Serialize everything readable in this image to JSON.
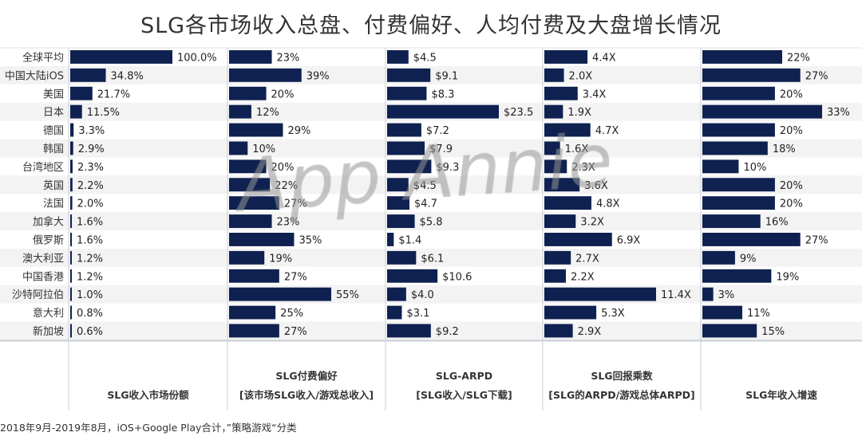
{
  "title": "SLG各市场收入总盘、付费偏好、人均付费及大盘增长情况",
  "footer": "2018年9月-2019年8月，iOS+Google Play合计，”策略游戏“分类",
  "watermark": "App Annie",
  "colors": {
    "bar": "#0f2150",
    "row_alt": "#f3f3f3",
    "divider": "#c9ced6"
  },
  "chart_data": {
    "type": "bar",
    "orientation": "horizontal",
    "categories": [
      "全球平均",
      "中国大陆iOS",
      "美国",
      "日本",
      "德国",
      "韩国",
      "台湾地区",
      "英国",
      "法国",
      "加拿大",
      "俄罗斯",
      "澳大利亚",
      "中国香港",
      "沙特阿拉伯",
      "意大利",
      "新加坡"
    ],
    "panels": [
      {
        "label_lines": [
          "SLG收入市场份额"
        ],
        "values": [
          100.0,
          34.8,
          21.7,
          11.5,
          3.3,
          2.9,
          2.3,
          2.2,
          2.0,
          1.6,
          1.6,
          1.2,
          1.2,
          1.0,
          0.8,
          0.6
        ],
        "labels": [
          "100.0%",
          "34.8%",
          "21.7%",
          "11.5%",
          "3.3%",
          "2.9%",
          "2.3%",
          "2.2%",
          "2.0%",
          "1.6%",
          "1.6%",
          "1.2%",
          "1.2%",
          "1.0%",
          "0.8%",
          "0.6%"
        ],
        "max": 100
      },
      {
        "label_lines": [
          "SLG付费偏好",
          "[该市场SLG收入/游戏总收入]"
        ],
        "values": [
          23,
          39,
          20,
          12,
          29,
          10,
          20,
          22,
          27,
          23,
          35,
          19,
          27,
          55,
          25,
          27
        ],
        "labels": [
          "23%",
          "39%",
          "20%",
          "12%",
          "29%",
          "10%",
          "20%",
          "22%",
          "27%",
          "23%",
          "35%",
          "19%",
          "27%",
          "55%",
          "25%",
          "27%"
        ],
        "max": 55
      },
      {
        "label_lines": [
          "SLG-ARPD",
          "[SLG收入/SLG下载]"
        ],
        "values": [
          4.5,
          9.1,
          8.3,
          23.5,
          7.2,
          7.9,
          9.3,
          4.5,
          4.7,
          5.8,
          1.4,
          6.1,
          10.6,
          4.0,
          3.1,
          9.2
        ],
        "labels": [
          "$4.5",
          "$9.1",
          "$8.3",
          "$23.5",
          "$7.2",
          "$7.9",
          "$9.3",
          "$4.5",
          "$4.7",
          "$5.8",
          "$1.4",
          "$6.1",
          "$10.6",
          "$4.0",
          "$3.1",
          "$9.2"
        ],
        "max": 23.5
      },
      {
        "label_lines": [
          "SLG回报乘数",
          "[SLG的ARPD/游戏总体ARPD]"
        ],
        "values": [
          4.4,
          2.0,
          3.4,
          1.9,
          4.7,
          1.6,
          2.3,
          3.6,
          4.8,
          3.2,
          6.9,
          2.7,
          2.2,
          11.4,
          5.3,
          2.9
        ],
        "labels": [
          "4.4X",
          "2.0X",
          "3.4X",
          "1.9X",
          "4.7X",
          "1.6X",
          "2.3X",
          "3.6X",
          "4.8X",
          "3.2X",
          "6.9X",
          "2.7X",
          "2.2X",
          "11.4X",
          "5.3X",
          "2.9X"
        ],
        "max": 11.4
      },
      {
        "label_lines": [
          "SLG年收入增速"
        ],
        "values": [
          22,
          27,
          20,
          33,
          20,
          18,
          10,
          20,
          20,
          16,
          27,
          9,
          19,
          3,
          11,
          15
        ],
        "labels": [
          "22%",
          "27%",
          "20%",
          "33%",
          "20%",
          "18%",
          "10%",
          "20%",
          "20%",
          "16%",
          "27%",
          "9%",
          "19%",
          "3%",
          "11%",
          "15%"
        ],
        "max": 33
      }
    ]
  }
}
